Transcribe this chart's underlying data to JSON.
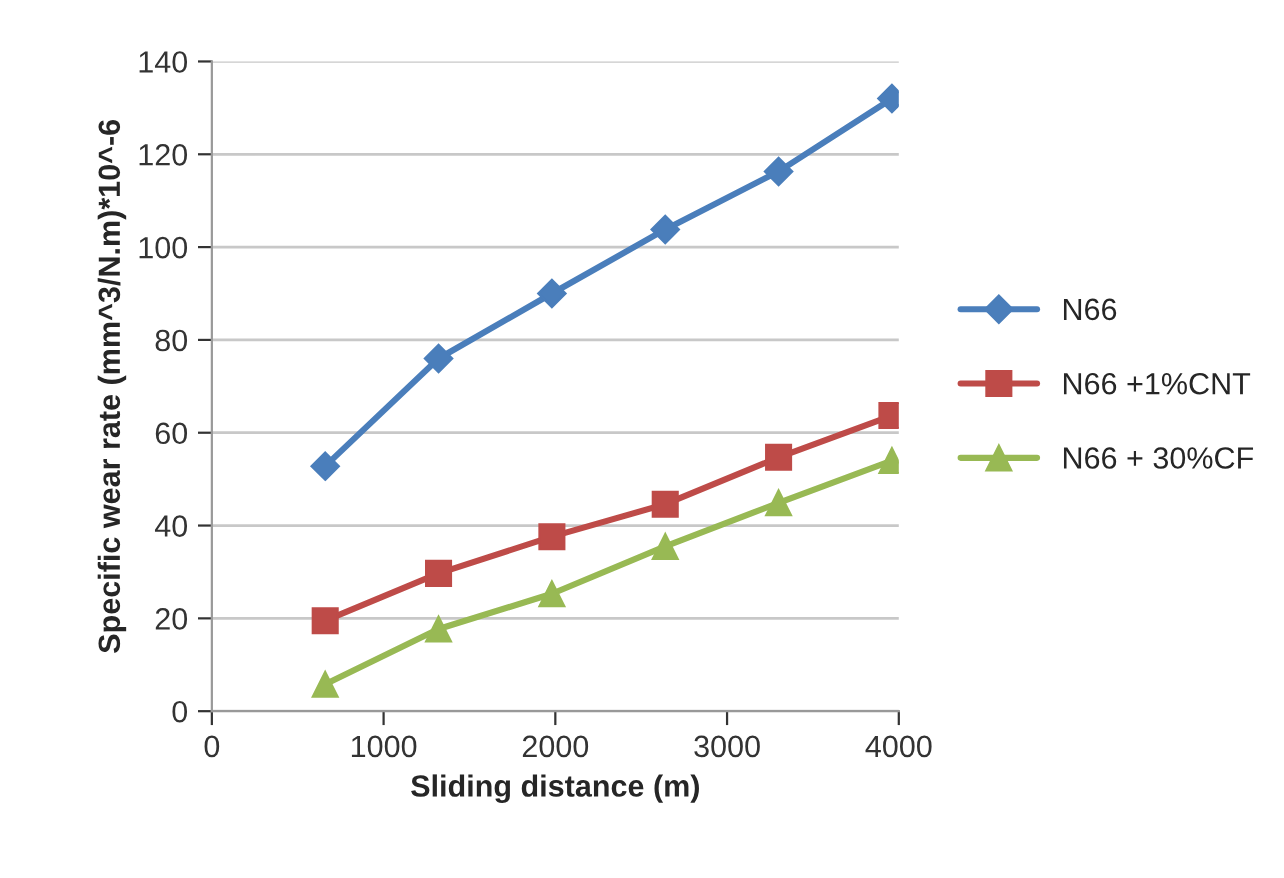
{
  "chart_data": {
    "type": "line",
    "xlabel": "Sliding distance (m)",
    "ylabel": "Specific wear rate (mm^3/N.m)*10^-6",
    "x": [
      660,
      1320,
      1980,
      2640,
      3300,
      3960
    ],
    "series": [
      {
        "name": "N66",
        "color": "#4a7ebb",
        "marker": "diamond",
        "values": [
          52.8,
          76,
          90,
          103.8,
          116.3,
          132
        ]
      },
      {
        "name": "N66 +1%CNT",
        "color": "#be4b48",
        "marker": "square",
        "values": [
          19.5,
          29.7,
          37.6,
          44.6,
          54.7,
          63.7
        ]
      },
      {
        "name": "N66 + 30%CF",
        "color": "#98b954",
        "marker": "triangle",
        "values": [
          5.8,
          17.7,
          25.3,
          35.5,
          44.9,
          54
        ]
      }
    ],
    "xlim": [
      0,
      4000
    ],
    "xticks": [
      0,
      1000,
      2000,
      3000,
      4000
    ],
    "ylim": [
      0,
      140
    ],
    "yticks": [
      0,
      20,
      40,
      60,
      80,
      100,
      120,
      140
    ],
    "grid": "y",
    "legend": "right",
    "line_style": "solid"
  }
}
